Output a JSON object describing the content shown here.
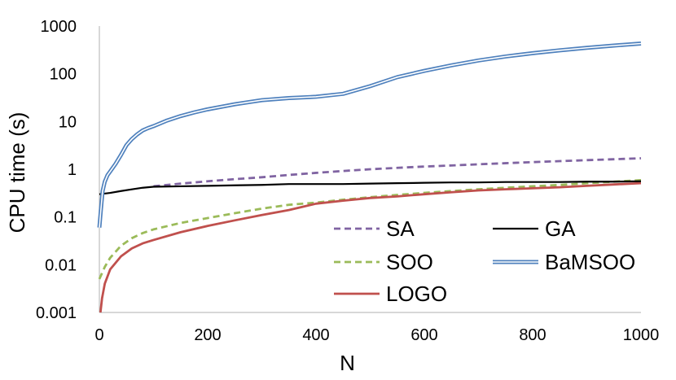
{
  "chart_data": {
    "type": "line",
    "title": "",
    "xlabel": "N",
    "ylabel": "CPU time (s)",
    "xlim": [
      0,
      1000
    ],
    "ylim": [
      0.001,
      1000
    ],
    "yscale": "log",
    "grid": "none",
    "legend_position": "bottom-right inside plot",
    "x_ticks": [
      "0",
      "200",
      "400",
      "600",
      "800",
      "1000"
    ],
    "y_ticks": [
      "0.001",
      "0.01",
      "0.1",
      "1",
      "10",
      "100",
      "1000"
    ],
    "series": [
      {
        "name": "SA",
        "color": "#8064a2",
        "style": "dashed",
        "x": [
          100,
          150,
          200,
          250,
          300,
          350,
          400,
          450,
          500,
          550,
          600,
          650,
          700,
          750,
          800,
          850,
          900,
          950,
          1000
        ],
        "y": [
          0.44,
          0.5,
          0.56,
          0.62,
          0.68,
          0.76,
          0.84,
          0.92,
          1.0,
          1.07,
          1.14,
          1.2,
          1.27,
          1.34,
          1.41,
          1.48,
          1.55,
          1.62,
          1.7
        ]
      },
      {
        "name": "GA",
        "color": "#000000",
        "style": "solid",
        "x": [
          0,
          20,
          40,
          60,
          80,
          100,
          150,
          200,
          250,
          300,
          350,
          400,
          450,
          500,
          550,
          600,
          650,
          700,
          750,
          800,
          850,
          900,
          950,
          1000
        ],
        "y": [
          0.3,
          0.32,
          0.35,
          0.38,
          0.41,
          0.43,
          0.44,
          0.45,
          0.46,
          0.47,
          0.49,
          0.49,
          0.49,
          0.5,
          0.51,
          0.52,
          0.53,
          0.53,
          0.54,
          0.54,
          0.54,
          0.55,
          0.55,
          0.56
        ]
      },
      {
        "name": "SOO",
        "color": "#9bbb59",
        "style": "dashed",
        "x": [
          0,
          10,
          20,
          40,
          60,
          80,
          100,
          150,
          200,
          250,
          300,
          350,
          400,
          450,
          500,
          550,
          600,
          650,
          700,
          750,
          800,
          850,
          900,
          950,
          1000
        ],
        "y": [
          0.005,
          0.009,
          0.014,
          0.025,
          0.036,
          0.046,
          0.055,
          0.075,
          0.095,
          0.12,
          0.15,
          0.18,
          0.2,
          0.23,
          0.26,
          0.29,
          0.32,
          0.35,
          0.38,
          0.41,
          0.44,
          0.47,
          0.51,
          0.55,
          0.59
        ]
      },
      {
        "name": "BaMSOO",
        "color": "#4f81bd",
        "style": "double",
        "x": [
          0,
          3,
          6,
          10,
          15,
          20,
          30,
          40,
          50,
          60,
          70,
          80,
          90,
          100,
          125,
          150,
          175,
          200,
          250,
          300,
          350,
          400,
          450,
          500,
          550,
          600,
          650,
          700,
          750,
          800,
          850,
          900,
          950,
          1000
        ],
        "y": [
          0.06,
          0.15,
          0.35,
          0.55,
          0.75,
          0.9,
          1.3,
          2.0,
          3.2,
          4.3,
          5.4,
          6.5,
          7.3,
          8.0,
          10.5,
          13.0,
          15.5,
          18.0,
          23.0,
          28.0,
          31.0,
          33.0,
          38.0,
          55.0,
          85.0,
          115.0,
          150.0,
          190.0,
          230.0,
          270.0,
          310.0,
          350.0,
          390.0,
          430.0
        ]
      },
      {
        "name": "LOGO",
        "color": "#c0504d",
        "style": "solid",
        "x": [
          2,
          5,
          10,
          20,
          40,
          60,
          80,
          100,
          150,
          200,
          250,
          300,
          350,
          400,
          450,
          500,
          550,
          600,
          650,
          700,
          750,
          800,
          850,
          900,
          950,
          1000
        ],
        "y": [
          0.001,
          0.002,
          0.004,
          0.008,
          0.015,
          0.022,
          0.028,
          0.033,
          0.048,
          0.065,
          0.085,
          0.11,
          0.14,
          0.19,
          0.22,
          0.25,
          0.27,
          0.3,
          0.33,
          0.36,
          0.38,
          0.4,
          0.42,
          0.45,
          0.48,
          0.51
        ]
      }
    ]
  }
}
